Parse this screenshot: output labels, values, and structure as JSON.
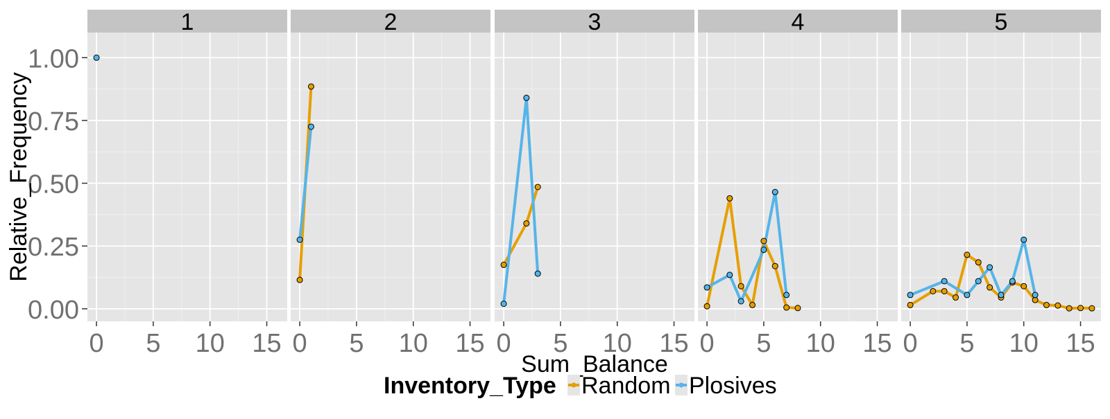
{
  "chart_data": {
    "type": "line",
    "facet_variable": "",
    "facets": [
      "1",
      "2",
      "3",
      "4",
      "5"
    ],
    "xlabel": "Sum_Balance",
    "ylabel": "Relative_Frequency",
    "xlim": [
      -0.8,
      16.8
    ],
    "ylim": [
      -0.05,
      1.1
    ],
    "x_ticks": [
      0,
      5,
      10,
      15
    ],
    "x_tick_labels": [
      "0",
      "5",
      "10",
      "15"
    ],
    "y_ticks": [
      0,
      0.25,
      0.5,
      0.75,
      1.0
    ],
    "y_tick_labels": [
      "0.00",
      "0.25",
      "0.50",
      "0.75",
      "1.00"
    ],
    "grid": true,
    "legend": {
      "title": "Inventory_Type",
      "position": "bottom",
      "entries": [
        "Random",
        "Plosives"
      ]
    },
    "series": [
      {
        "name": "Random",
        "color": "#E69F00",
        "panels": {
          "1": [],
          "2": [
            [
              0,
              0.115
            ],
            [
              1,
              0.885
            ]
          ],
          "3": [
            [
              0,
              0.175
            ],
            [
              2,
              0.34
            ],
            [
              3,
              0.485
            ]
          ],
          "4": [
            [
              0,
              0.01
            ],
            [
              2,
              0.44
            ],
            [
              3,
              0.09
            ],
            [
              4,
              0.015
            ],
            [
              5,
              0.27
            ],
            [
              6,
              0.17
            ],
            [
              7,
              0.005
            ],
            [
              8,
              0.003
            ]
          ],
          "5": [
            [
              0,
              0.015
            ],
            [
              2,
              0.07
            ],
            [
              3,
              0.07
            ],
            [
              4,
              0.045
            ],
            [
              5,
              0.215
            ],
            [
              6,
              0.185
            ],
            [
              7,
              0.085
            ],
            [
              8,
              0.045
            ],
            [
              9,
              0.105
            ],
            [
              10,
              0.09
            ],
            [
              11,
              0.035
            ],
            [
              12,
              0.015
            ],
            [
              13,
              0.013
            ],
            [
              14,
              0.002
            ],
            [
              15,
              0.003
            ],
            [
              16,
              0.002
            ]
          ]
        }
      },
      {
        "name": "Plosives",
        "color": "#56B4E9",
        "panels": {
          "1": [
            [
              0,
              1.0
            ]
          ],
          "2": [
            [
              0,
              0.275
            ],
            [
              1,
              0.725
            ]
          ],
          "3": [
            [
              0,
              0.02
            ],
            [
              2,
              0.84
            ],
            [
              3,
              0.14
            ]
          ],
          "4": [
            [
              0,
              0.085
            ],
            [
              2,
              0.135
            ],
            [
              3,
              0.03
            ],
            [
              5,
              0.235
            ],
            [
              6,
              0.465
            ],
            [
              7,
              0.055
            ]
          ],
          "5": [
            [
              0,
              0.055
            ],
            [
              3,
              0.11
            ],
            [
              5,
              0.055
            ],
            [
              6,
              0.11
            ],
            [
              7,
              0.165
            ],
            [
              8,
              0.055
            ],
            [
              9,
              0.11
            ],
            [
              10,
              0.275
            ],
            [
              11,
              0.055
            ]
          ]
        }
      }
    ]
  }
}
